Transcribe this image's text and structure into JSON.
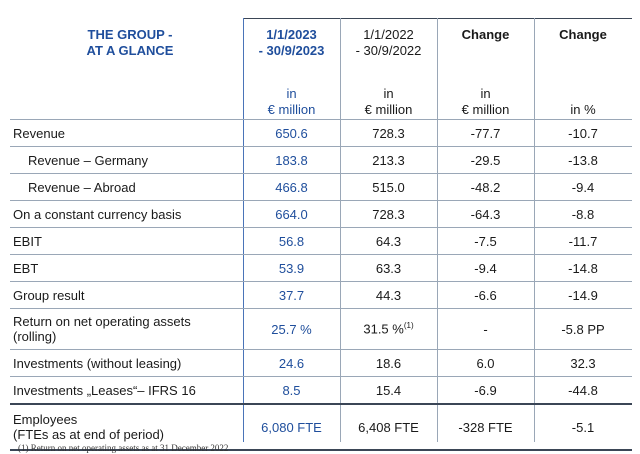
{
  "header": {
    "title_line1": "THE GROUP -",
    "title_line2": "AT A GLANCE",
    "col2023_line1": "1/1/2023",
    "col2023_line2": "- 30/9/2023",
    "col2022_line1": "1/1/2022",
    "col2022_line2": "- 30/9/2022",
    "change_abs": "Change",
    "change_pct": "Change"
  },
  "units": {
    "col2023_line1": "in",
    "col2023_line2": "€ million",
    "col2022_line1": "in",
    "col2022_line2": "€ million",
    "change_abs_line1": "in",
    "change_abs_line2": "€ million",
    "change_pct": "in %"
  },
  "rows": [
    {
      "label": "Revenue",
      "v2023": "650.6",
      "v2022": "728.3",
      "chg": "-77.7",
      "pct": "-10.7"
    },
    {
      "label": "Revenue – Germany",
      "v2023": "183.8",
      "v2022": "213.3",
      "chg": "-29.5",
      "pct": "-13.8"
    },
    {
      "label": "Revenue – Abroad",
      "v2023": "466.8",
      "v2022": "515.0",
      "chg": "-48.2",
      "pct": "-9.4"
    },
    {
      "label": "On a constant currency basis",
      "v2023": "664.0",
      "v2022": "728.3",
      "chg": "-64.3",
      "pct": "-8.8"
    },
    {
      "label": "EBIT",
      "v2023": "56.8",
      "v2022": "64.3",
      "chg": "-7.5",
      "pct": "-11.7"
    },
    {
      "label": "EBT",
      "v2023": "53.9",
      "v2022": "63.3",
      "chg": "-9.4",
      "pct": "-14.8"
    },
    {
      "label": "Group result",
      "v2023": "37.7",
      "v2022": "44.3",
      "chg": "-6.6",
      "pct": "-14.9"
    },
    {
      "label_line1": "Return on net operating assets",
      "label_line2": "(rolling)",
      "v2023": "25.7 %",
      "v2022": "31.5 %",
      "v2022_sup": "(1)",
      "chg": "-",
      "pct": "-5.8 PP"
    },
    {
      "label": "Investments (without leasing)",
      "v2023": "24.6",
      "v2022": "18.6",
      "chg": "6.0",
      "pct": "32.3"
    },
    {
      "label": "Investments „Leases“– IFRS 16",
      "v2023": "8.5",
      "v2022": "15.4",
      "chg": "-6.9",
      "pct": "-44.8"
    },
    {
      "label_line1": "Employees",
      "label_line2": "(FTEs as at end of period)",
      "v2023": "6,080 FTE",
      "v2022": "6,408 FTE",
      "chg": "-328 FTE",
      "pct": "-5.1"
    }
  ],
  "footnote": "(1)     Return on net operating assets as at 31 December 2022",
  "colors": {
    "accent": "#1f4e9c",
    "rule": "#9aa7b7"
  }
}
